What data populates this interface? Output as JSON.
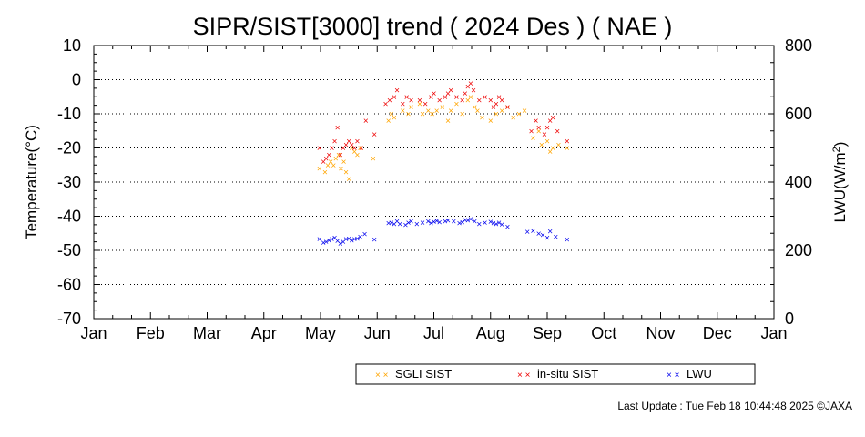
{
  "chart_data": {
    "type": "scatter",
    "title": "SIPR/SIST[3000] trend ( 2024 Des ) ( NAE )",
    "ylabel": "Temperature(°C)",
    "y2label_pre": "LWU(W/m",
    "y2label_sup": "2",
    "y2label_post": ")",
    "ylim": [
      -70,
      10
    ],
    "yticks": [
      10,
      0,
      -10,
      -20,
      -30,
      -40,
      -50,
      -60,
      -70
    ],
    "y2lim": [
      0,
      800
    ],
    "y2ticks": [
      800,
      600,
      400,
      200,
      0
    ],
    "xlim": [
      0,
      12
    ],
    "xticks": [
      {
        "pos": 0,
        "label": "Jan"
      },
      {
        "pos": 1,
        "label": "Feb"
      },
      {
        "pos": 2,
        "label": "Mar"
      },
      {
        "pos": 3,
        "label": "Apr"
      },
      {
        "pos": 4,
        "label": "May"
      },
      {
        "pos": 5,
        "label": "Jun"
      },
      {
        "pos": 6,
        "label": "Jul"
      },
      {
        "pos": 7,
        "label": "Aug"
      },
      {
        "pos": 8,
        "label": "Sep"
      },
      {
        "pos": 9,
        "label": "Oct"
      },
      {
        "pos": 10,
        "label": "Nov"
      },
      {
        "pos": 11,
        "label": "Dec"
      },
      {
        "pos": 12,
        "label": "Jan"
      }
    ],
    "grid": "dotted horizontal",
    "legend_position": "bottom",
    "series": [
      {
        "name": "SGLI SIST",
        "color": "#ffa500",
        "axis": "left",
        "points": [
          [
            3.98,
            -26
          ],
          [
            4.08,
            -27
          ],
          [
            4.13,
            -25
          ],
          [
            4.18,
            -24
          ],
          [
            4.23,
            -25
          ],
          [
            4.27,
            -23
          ],
          [
            4.32,
            -22
          ],
          [
            4.36,
            -26
          ],
          [
            4.41,
            -24
          ],
          [
            4.45,
            -27
          ],
          [
            4.5,
            -29
          ],
          [
            4.55,
            -20
          ],
          [
            4.6,
            -21
          ],
          [
            4.65,
            -22
          ],
          [
            4.7,
            -20
          ],
          [
            4.93,
            -23
          ],
          [
            5.2,
            -12
          ],
          [
            5.25,
            -10
          ],
          [
            5.3,
            -11
          ],
          [
            5.45,
            -9
          ],
          [
            5.55,
            -10
          ],
          [
            5.6,
            -8
          ],
          [
            5.75,
            -7
          ],
          [
            5.8,
            -10
          ],
          [
            5.9,
            -9
          ],
          [
            5.97,
            -10
          ],
          [
            6.05,
            -9
          ],
          [
            6.15,
            -8
          ],
          [
            6.25,
            -12
          ],
          [
            6.3,
            -9
          ],
          [
            6.4,
            -7
          ],
          [
            6.5,
            -10
          ],
          [
            6.6,
            -6
          ],
          [
            6.65,
            -5
          ],
          [
            6.72,
            -8
          ],
          [
            6.77,
            -9
          ],
          [
            6.85,
            -11
          ],
          [
            7.0,
            -12
          ],
          [
            7.1,
            -10
          ],
          [
            7.2,
            -9
          ],
          [
            7.3,
            -8
          ],
          [
            7.4,
            -11
          ],
          [
            7.5,
            -10
          ],
          [
            7.6,
            -9
          ],
          [
            7.75,
            -17
          ],
          [
            7.85,
            -15
          ],
          [
            7.9,
            -19
          ],
          [
            8.0,
            -18
          ],
          [
            8.05,
            -21
          ],
          [
            8.1,
            -20
          ],
          [
            8.2,
            -19
          ],
          [
            8.35,
            -20
          ]
        ]
      },
      {
        "name": "in-situ SIST",
        "color": "#ee0000",
        "axis": "left",
        "points": [
          [
            3.98,
            -20
          ],
          [
            4.05,
            -24
          ],
          [
            4.1,
            -23
          ],
          [
            4.15,
            -22
          ],
          [
            4.2,
            -20
          ],
          [
            4.25,
            -18
          ],
          [
            4.3,
            -14
          ],
          [
            4.35,
            -22
          ],
          [
            4.4,
            -20
          ],
          [
            4.45,
            -19
          ],
          [
            4.5,
            -18
          ],
          [
            4.55,
            -19
          ],
          [
            4.6,
            -20
          ],
          [
            4.65,
            -18
          ],
          [
            4.72,
            -20
          ],
          [
            4.8,
            -12
          ],
          [
            4.95,
            -16
          ],
          [
            5.15,
            -7
          ],
          [
            5.22,
            -6
          ],
          [
            5.3,
            -5
          ],
          [
            5.35,
            -3
          ],
          [
            5.45,
            -7
          ],
          [
            5.52,
            -5
          ],
          [
            5.6,
            -6
          ],
          [
            5.75,
            -6
          ],
          [
            5.85,
            -7
          ],
          [
            5.95,
            -5
          ],
          [
            6.0,
            -4
          ],
          [
            6.1,
            -6
          ],
          [
            6.2,
            -5
          ],
          [
            6.25,
            -4
          ],
          [
            6.3,
            -3
          ],
          [
            6.4,
            -5
          ],
          [
            6.5,
            -6
          ],
          [
            6.55,
            -4
          ],
          [
            6.6,
            -2
          ],
          [
            6.65,
            -1
          ],
          [
            6.7,
            -3
          ],
          [
            6.8,
            -6
          ],
          [
            6.9,
            -5
          ],
          [
            7.0,
            -6
          ],
          [
            7.05,
            -8
          ],
          [
            7.1,
            -7
          ],
          [
            7.15,
            -5
          ],
          [
            7.2,
            -6
          ],
          [
            7.3,
            -8
          ],
          [
            7.72,
            -15
          ],
          [
            7.8,
            -12
          ],
          [
            7.85,
            -14
          ],
          [
            7.95,
            -16
          ],
          [
            8.0,
            -14
          ],
          [
            8.05,
            -12
          ],
          [
            8.1,
            -11
          ],
          [
            8.18,
            -15
          ],
          [
            8.35,
            -18
          ]
        ]
      },
      {
        "name": "LWU",
        "color": "#0000ee",
        "axis": "right",
        "points": [
          [
            3.98,
            233
          ],
          [
            4.05,
            223
          ],
          [
            4.1,
            225
          ],
          [
            4.15,
            230
          ],
          [
            4.2,
            233
          ],
          [
            4.25,
            238
          ],
          [
            4.3,
            228
          ],
          [
            4.35,
            220
          ],
          [
            4.4,
            226
          ],
          [
            4.45,
            233
          ],
          [
            4.5,
            235
          ],
          [
            4.55,
            230
          ],
          [
            4.6,
            233
          ],
          [
            4.65,
            235
          ],
          [
            4.7,
            240
          ],
          [
            4.78,
            248
          ],
          [
            4.95,
            232
          ],
          [
            5.2,
            280
          ],
          [
            5.25,
            282
          ],
          [
            5.3,
            278
          ],
          [
            5.35,
            285
          ],
          [
            5.4,
            278
          ],
          [
            5.5,
            275
          ],
          [
            5.55,
            281
          ],
          [
            5.6,
            285
          ],
          [
            5.7,
            278
          ],
          [
            5.8,
            282
          ],
          [
            5.9,
            285
          ],
          [
            5.95,
            280
          ],
          [
            6.0,
            284
          ],
          [
            6.05,
            287
          ],
          [
            6.1,
            283
          ],
          [
            6.2,
            285
          ],
          [
            6.25,
            288
          ],
          [
            6.35,
            286
          ],
          [
            6.45,
            280
          ],
          [
            6.5,
            283
          ],
          [
            6.55,
            290
          ],
          [
            6.6,
            288
          ],
          [
            6.65,
            292
          ],
          [
            6.72,
            285
          ],
          [
            6.8,
            278
          ],
          [
            6.9,
            282
          ],
          [
            7.0,
            284
          ],
          [
            7.05,
            280
          ],
          [
            7.1,
            278
          ],
          [
            7.15,
            282
          ],
          [
            7.2,
            276
          ],
          [
            7.3,
            270
          ],
          [
            7.65,
            255
          ],
          [
            7.75,
            258
          ],
          [
            7.85,
            250
          ],
          [
            7.92,
            245
          ],
          [
            8.0,
            237
          ],
          [
            8.05,
            256
          ],
          [
            8.15,
            240
          ],
          [
            8.35,
            232
          ]
        ]
      }
    ]
  },
  "footer": "Last Update : Tue Feb 18 10:44:48 2025  ©JAXA"
}
